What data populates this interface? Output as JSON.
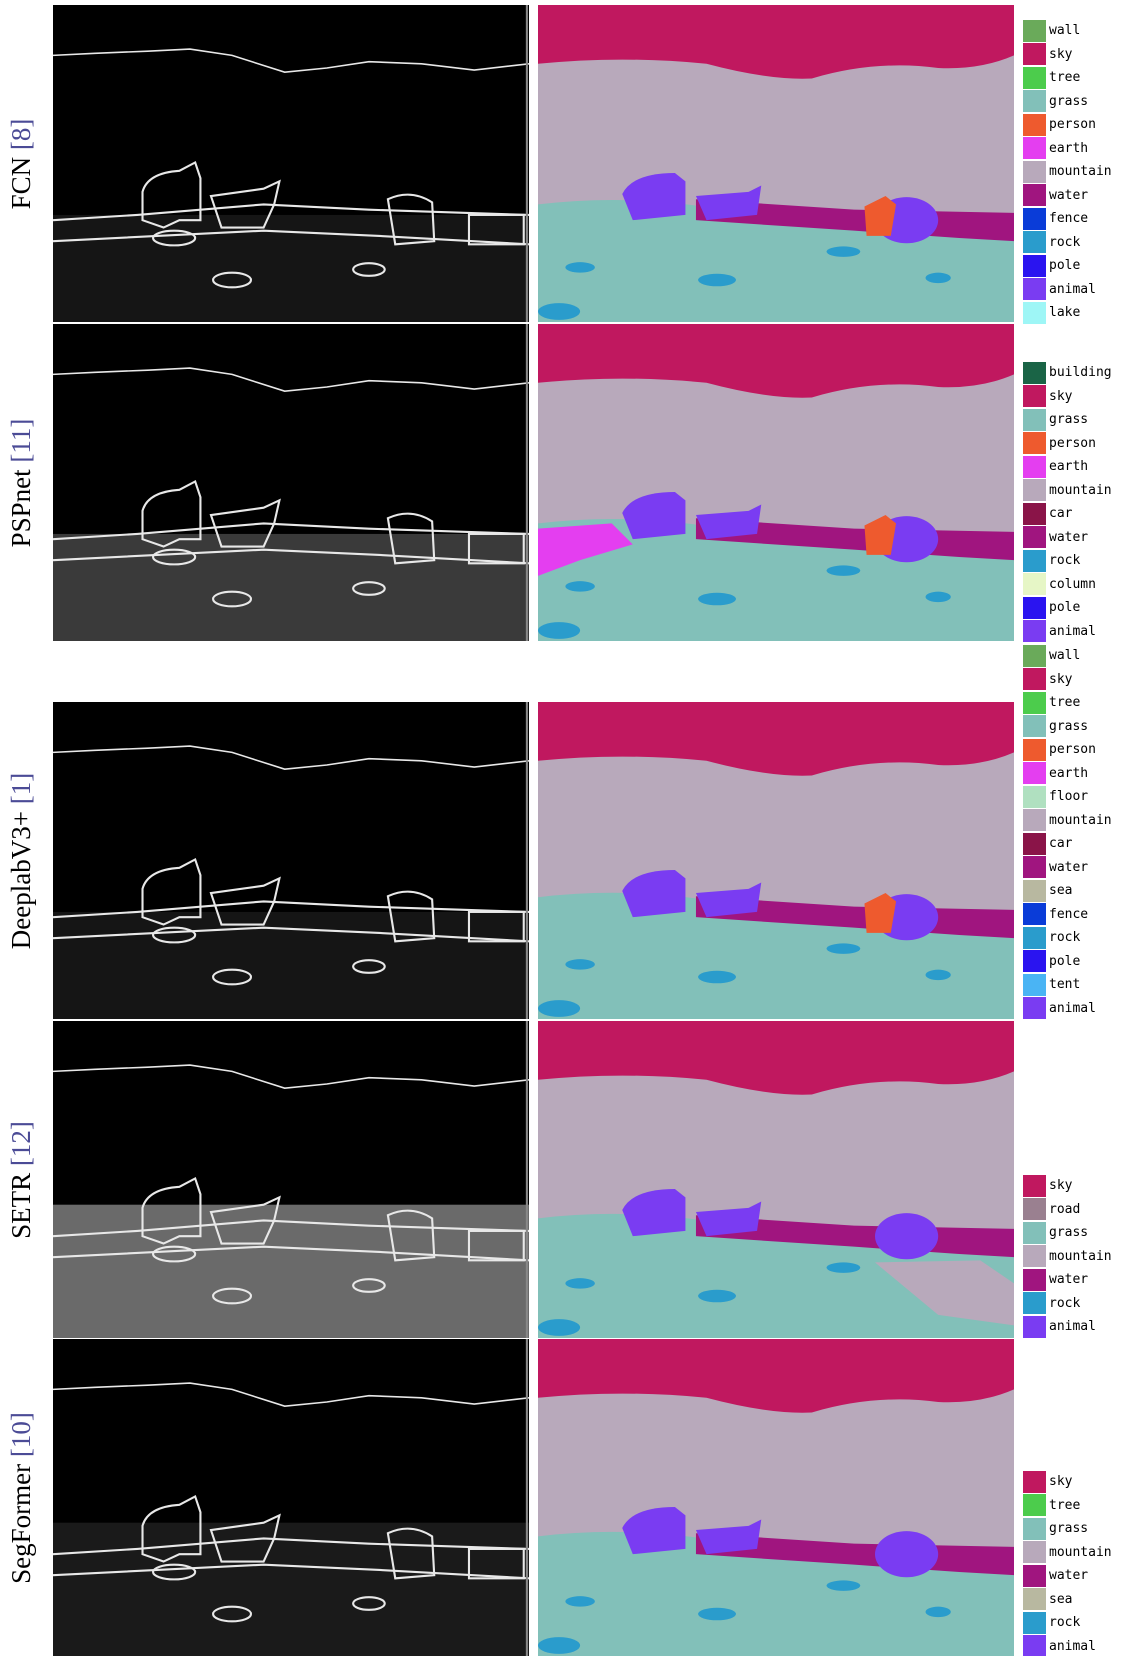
{
  "rows": [
    {
      "method": "FCN",
      "citation": "[8]",
      "legend": [
        {
          "label": "wall",
          "color": "#6aaa5a"
        },
        {
          "label": "sky",
          "color": "#c0185f"
        },
        {
          "label": "tree",
          "color": "#4ccc4c"
        },
        {
          "label": "grass",
          "color": "#82c0b9"
        },
        {
          "label": "person",
          "color": "#ee5a2e"
        },
        {
          "label": "earth",
          "color": "#e43ef0"
        },
        {
          "label": "mountain",
          "color": "#b8a9bb"
        },
        {
          "label": "water",
          "color": "#a0157f"
        },
        {
          "label": "fence",
          "color": "#0a3cd8"
        },
        {
          "label": "rock",
          "color": "#2a9ccc"
        },
        {
          "label": "pole",
          "color": "#2a14f0"
        },
        {
          "label": "animal",
          "color": "#7a3cf2"
        },
        {
          "label": "lake",
          "color": "#9ef6f6"
        }
      ]
    },
    {
      "method": "PSPnet",
      "citation": "[11]",
      "legend": [
        {
          "label": "building",
          "color": "#1a6446"
        },
        {
          "label": "sky",
          "color": "#c0185f"
        },
        {
          "label": "grass",
          "color": "#82c0b9"
        },
        {
          "label": "person",
          "color": "#ee5a2e"
        },
        {
          "label": "earth",
          "color": "#e43ef0"
        },
        {
          "label": "mountain",
          "color": "#b8a9bb"
        },
        {
          "label": "car",
          "color": "#8a1448"
        },
        {
          "label": "water",
          "color": "#a0157f"
        },
        {
          "label": "rock",
          "color": "#2a9ccc"
        },
        {
          "label": "column",
          "color": "#e6f6c6"
        },
        {
          "label": "pole",
          "color": "#2a14f0"
        },
        {
          "label": "animal",
          "color": "#7a3cf2"
        }
      ]
    },
    {
      "method": "DeeplabV3+",
      "citation": "[1]",
      "legend": [
        {
          "label": "wall",
          "color": "#6aaa5a"
        },
        {
          "label": "sky",
          "color": "#c0185f"
        },
        {
          "label": "tree",
          "color": "#4ccc4c"
        },
        {
          "label": "grass",
          "color": "#82c0b9"
        },
        {
          "label": "person",
          "color": "#ee5a2e"
        },
        {
          "label": "earth",
          "color": "#e43ef0"
        },
        {
          "label": "floor",
          "color": "#b0e0c0"
        },
        {
          "label": "mountain",
          "color": "#b8a9bb"
        },
        {
          "label": "car",
          "color": "#8a1448"
        },
        {
          "label": "water",
          "color": "#a0157f"
        },
        {
          "label": "sea",
          "color": "#b8b8a0"
        },
        {
          "label": "fence",
          "color": "#0a3cd8"
        },
        {
          "label": "rock",
          "color": "#2a9ccc"
        },
        {
          "label": "pole",
          "color": "#2a14f0"
        },
        {
          "label": "tent",
          "color": "#4ab4f4"
        },
        {
          "label": "animal",
          "color": "#7a3cf2"
        }
      ]
    },
    {
      "method": "SETR",
      "citation": "[12]",
      "legend": [
        {
          "label": "sky",
          "color": "#c0185f"
        },
        {
          "label": "road",
          "color": "#9a8090"
        },
        {
          "label": "grass",
          "color": "#82c0b9"
        },
        {
          "label": "mountain",
          "color": "#b8a9bb"
        },
        {
          "label": "water",
          "color": "#a0157f"
        },
        {
          "label": "rock",
          "color": "#2a9ccc"
        },
        {
          "label": "animal",
          "color": "#7a3cf2"
        }
      ]
    },
    {
      "method": "SegFormer",
      "citation": "[10]",
      "legend": [
        {
          "label": "sky",
          "color": "#c0185f"
        },
        {
          "label": "tree",
          "color": "#4ccc4c"
        },
        {
          "label": "grass",
          "color": "#82c0b9"
        },
        {
          "label": "mountain",
          "color": "#b8a9bb"
        },
        {
          "label": "water",
          "color": "#a0157f"
        },
        {
          "label": "sea",
          "color": "#b8b8a0"
        },
        {
          "label": "rock",
          "color": "#2a9ccc"
        },
        {
          "label": "animal",
          "color": "#7a3cf2"
        }
      ]
    }
  ]
}
